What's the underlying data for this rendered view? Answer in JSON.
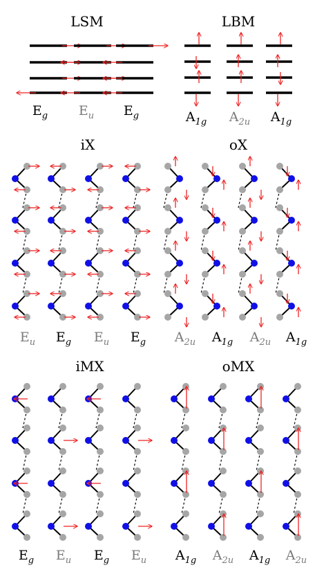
{
  "colors": {
    "arrow": "#ee2222",
    "atom_metal": "#1010e6",
    "atom_x": "#a6a6a6",
    "bond": "#000000",
    "mode_label_dark": "#000000",
    "mode_label_grey": "#7a7a7a"
  },
  "panels": {
    "lsm": {
      "title": "LSM",
      "modes": [
        {
          "label": "Eg"
        },
        {
          "label": "Eu"
        },
        {
          "label": "Eg"
        }
      ]
    },
    "lbm": {
      "title": "LBM",
      "modes": [
        {
          "label": "A1g"
        },
        {
          "label": "A2u"
        },
        {
          "label": "A1g"
        }
      ]
    },
    "ix": {
      "title": "iX",
      "modes": [
        {
          "label": "Eu"
        },
        {
          "label": "Eg"
        },
        {
          "label": "Eu"
        },
        {
          "label": "Eg"
        }
      ]
    },
    "ox": {
      "title": "oX",
      "modes": [
        {
          "label": "A2u"
        },
        {
          "label": "A1g"
        },
        {
          "label": "A2u"
        },
        {
          "label": "A1g"
        }
      ]
    },
    "imx": {
      "title": "iMX",
      "modes": [
        {
          "label": "Eg"
        },
        {
          "label": "Eu"
        },
        {
          "label": "Eg"
        },
        {
          "label": "Eu"
        }
      ]
    },
    "omx": {
      "title": "oMX",
      "modes": [
        {
          "label": "A1g"
        },
        {
          "label": "A2u"
        },
        {
          "label": "A1g"
        },
        {
          "label": "A2u"
        }
      ]
    }
  }
}
